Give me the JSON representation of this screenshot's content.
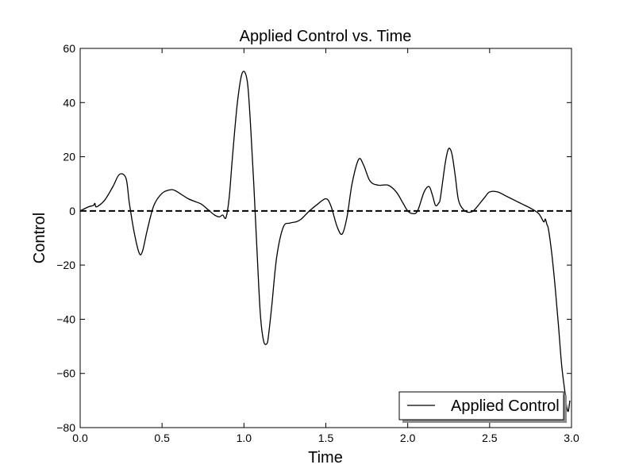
{
  "chart_data": {
    "type": "line",
    "title": "Applied Control vs. Time",
    "xlabel": "Time",
    "ylabel": "Control",
    "xlim": [
      0.0,
      3.0
    ],
    "ylim": [
      -80,
      60
    ],
    "xticks": [
      0.0,
      0.5,
      1.0,
      1.5,
      2.0,
      2.5,
      3.0
    ],
    "xtick_labels": [
      "0.0",
      "0.5",
      "1.0",
      "1.5",
      "2.0",
      "2.5",
      "3.0"
    ],
    "yticks": [
      60,
      40,
      20,
      0,
      -20,
      -40,
      -60,
      -80
    ],
    "ytick_labels": [
      "60",
      "40",
      "20",
      "0",
      "−20",
      "−40",
      "−60",
      "−80"
    ],
    "grid": false,
    "legend": {
      "position": "lower-right",
      "entries": [
        "Applied Control"
      ]
    },
    "reference_line": {
      "y": 0,
      "style": "dashed"
    },
    "series": [
      {
        "name": "Applied Control",
        "color": "#000000",
        "x": [
          0.0,
          0.05,
          0.08,
          0.09,
          0.1,
          0.15,
          0.2,
          0.24,
          0.28,
          0.3,
          0.33,
          0.36,
          0.38,
          0.41,
          0.45,
          0.5,
          0.55,
          0.58,
          0.62,
          0.66,
          0.7,
          0.74,
          0.78,
          0.82,
          0.85,
          0.87,
          0.89,
          0.91,
          0.93,
          0.96,
          0.99,
          1.02,
          1.04,
          1.06,
          1.08,
          1.1,
          1.12,
          1.14,
          1.15,
          1.17,
          1.2,
          1.24,
          1.28,
          1.32,
          1.35,
          1.4,
          1.45,
          1.5,
          1.53,
          1.57,
          1.6,
          1.63,
          1.66,
          1.7,
          1.73,
          1.77,
          1.82,
          1.88,
          1.93,
          1.97,
          2.0,
          2.03,
          2.06,
          2.1,
          2.13,
          2.15,
          2.17,
          2.19,
          2.2,
          2.23,
          2.25,
          2.27,
          2.29,
          2.31,
          2.34,
          2.37,
          2.4,
          2.43,
          2.47,
          2.5,
          2.55,
          2.6,
          2.65,
          2.7,
          2.75,
          2.8,
          2.83,
          2.84,
          2.85,
          2.86,
          2.88,
          2.9,
          2.92,
          2.94,
          2.96,
          2.97,
          2.98,
          2.99
        ],
        "y": [
          0,
          1.5,
          2,
          2.8,
          1.5,
          4,
          9,
          13.5,
          12,
          3,
          -8,
          -15.5,
          -15,
          -7,
          2,
          6.5,
          7.8,
          7.5,
          6,
          4.5,
          3.5,
          2.5,
          0.5,
          -1.5,
          -2.2,
          -1.5,
          -2.5,
          5,
          20,
          40,
          51,
          48,
          32,
          10,
          -15,
          -38,
          -48,
          -49,
          -46,
          -35,
          -17,
          -6,
          -4.5,
          -4,
          -3,
          0,
          2.5,
          4.5,
          2,
          -6,
          -8.5,
          -2,
          10,
          19,
          17,
          11,
          9.5,
          9.5,
          7,
          3,
          0,
          -1,
          0,
          7,
          9,
          6,
          2,
          3,
          5,
          18,
          23,
          21,
          13,
          4,
          0.5,
          -0.5,
          0,
          2,
          5,
          7,
          7,
          5.5,
          4,
          2.5,
          1,
          -1,
          -4,
          -3,
          -5,
          -7,
          -16,
          -28,
          -42,
          -57,
          -67,
          -72,
          -74,
          -70
        ]
      }
    ]
  }
}
